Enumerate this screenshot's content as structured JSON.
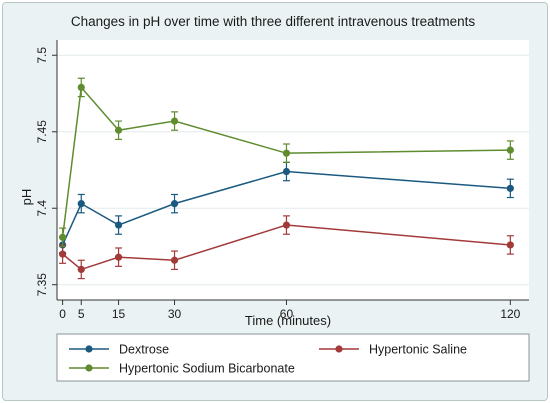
{
  "chart_data": {
    "type": "line",
    "title": "Changes in pH over time with three different intravenous treatments",
    "xlabel": "Time (minutes)",
    "ylabel": "pH",
    "x": [
      0,
      5,
      15,
      30,
      60,
      120
    ],
    "x_ticks": [
      "0",
      "5",
      "15",
      "30",
      "60",
      "120"
    ],
    "y_ticks": [
      "7.35",
      "7.4",
      "7.45",
      "7.5"
    ],
    "y_tick_values": [
      7.35,
      7.4,
      7.45,
      7.5
    ],
    "xlim": [
      -1.5,
      125
    ],
    "ylim": [
      7.34,
      7.51
    ],
    "grid": true,
    "legend_position": "bottom",
    "series": [
      {
        "name": "Dextrose",
        "color": "#1b5a80",
        "values": [
          7.376,
          7.403,
          7.389,
          7.403,
          7.424,
          7.413
        ],
        "error": [
          0.005,
          0.006,
          0.006,
          0.006,
          0.006,
          0.006
        ]
      },
      {
        "name": "Hypertonic Saline",
        "color": "#a23a3a",
        "values": [
          7.37,
          7.36,
          7.368,
          7.366,
          7.389,
          7.376
        ],
        "error": [
          0.006,
          0.006,
          0.006,
          0.006,
          0.006,
          0.006
        ]
      },
      {
        "name": "Hypertonic Sodium Bicarbonate",
        "color": "#5e8c2f",
        "values": [
          7.381,
          7.479,
          7.451,
          7.457,
          7.436,
          7.438
        ],
        "error": [
          0.006,
          0.006,
          0.006,
          0.006,
          0.006,
          0.006
        ]
      }
    ]
  }
}
